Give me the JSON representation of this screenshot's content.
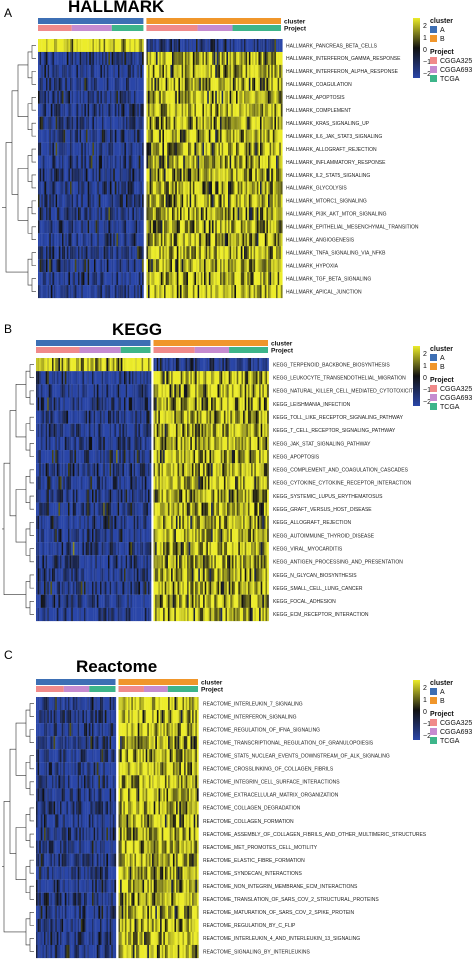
{
  "legend": {
    "cluster_title": "cluster",
    "cluster_items": [
      {
        "label": "A",
        "color": "#3d6fb4"
      },
      {
        "label": "B",
        "color": "#f0962b"
      }
    ],
    "project_title": "Project",
    "project_items": [
      {
        "label": "CGGA325",
        "color": "#f08a8a"
      },
      {
        "label": "CGGA693",
        "color": "#c58bd0"
      },
      {
        "label": "TCGA",
        "color": "#3db58a"
      }
    ],
    "scale_ticks": [
      "2",
      "1",
      "0",
      "−1",
      "−2"
    ],
    "colors": {
      "high": "#ecec2a",
      "mid": "#111111",
      "low": "#2a46a8"
    }
  },
  "bar_labels": {
    "cluster": "cluster",
    "project": "Project"
  },
  "chart_data": [
    {
      "type": "heatmap",
      "panel": "A",
      "title": "HALLMARK",
      "rows": [
        "HALLMARK_PANCREAS_BETA_CELLS",
        "HALLMARK_INTERFERON_GAMMA_RESPONSE",
        "HALLMARK_INTERFERON_ALPHA_RESPONSE",
        "HALLMARK_COAGULATION",
        "HALLMARK_APOPTOSIS",
        "HALLMARK_COMPLEMENT",
        "HALLMARK_KRAS_SIGNALING_UP",
        "HALLMARK_IL6_JAK_STAT3_SIGNALING",
        "HALLMARK_ALLOGRAFT_REJECTION",
        "HALLMARK_INFLAMMATORY_RESPONSE",
        "HALLMARK_IL2_STAT5_SIGNALING",
        "HALLMARK_GLYCOLYSIS",
        "HALLMARK_MTORC1_SIGNALING",
        "HALLMARK_PI3K_AKT_MTOR_SIGNALING",
        "HALLMARK_EPITHELIAL_MESENCHYMAL_TRANSITION",
        "HALLMARK_ANGIOGENESIS",
        "HALLMARK_TNFA_SIGNALING_VIA_NFKB",
        "HALLMARK_HYPOXIA",
        "HALLMARK_TGF_BETA_SIGNALING",
        "HALLMARK_APICAL_JUNCTION"
      ],
      "cluster_split": 0.44,
      "project_a": [
        0.32,
        0.38,
        0.3
      ],
      "project_b": [
        0.38,
        0.26,
        0.36
      ],
      "cluster_a_level": [
        1.4,
        -1.2,
        -1.3,
        -1.3,
        -1.2,
        -1.3,
        -1.2,
        -1.1,
        -1.2,
        -1.2,
        -1.1,
        -1.1,
        -1.0,
        -1.0,
        -1.3,
        -1.2,
        -1.1,
        -1.1,
        -1.4,
        -1.3
      ],
      "cluster_b_level": [
        -1.3,
        1.1,
        1.1,
        1.0,
        1.0,
        1.1,
        1.0,
        1.0,
        1.0,
        1.0,
        0.9,
        0.9,
        0.9,
        0.9,
        1.1,
        1.0,
        1.0,
        0.9,
        1.2,
        1.2
      ]
    },
    {
      "type": "heatmap",
      "panel": "B",
      "title": "KEGG",
      "rows": [
        "KEGG_TERPENOID_BACKBONE_BIOSYNTHESIS",
        "KEGG_LEUKOCYTE_TRANSENDOTHELIAL_MIGRATION",
        "KEGG_NATURAL_KILLER_CELL_MEDIATED_CYTOTOXICITY",
        "KEGG_LEISHMANIA_INFECTION",
        "KEGG_TOLL_LIKE_RECEPTOR_SIGNALING_PATHWAY",
        "KEGG_T_CELL_RECEPTOR_SIGNALING_PATHWAY",
        "KEGG_JAK_STAT_SIGNALING_PATHWAY",
        "KEGG_APOPTOSIS",
        "KEGG_COMPLEMENT_AND_COAGULATION_CASCADES",
        "KEGG_CYTOKINE_CYTOKINE_RECEPTOR_INTERACTION",
        "KEGG_SYSTEMIC_LUPUS_ERYTHEMATOSUS",
        "KEGG_GRAFT_VERSUS_HOST_DISEASE",
        "KEGG_ALLOGRAFT_REJECTION",
        "KEGG_AUTOIMMUNE_THYROID_DISEASE",
        "KEGG_VIRAL_MYOCARDITIS",
        "KEGG_ANTIGEN_PROCESSING_AND_PRESENTATION",
        "KEGG_N_GLYCAN_BIOSYNTHESIS",
        "KEGG_SMALL_CELL_LUNG_CANCER",
        "KEGG_FOCAL_ADHESION",
        "KEGG_ECM_RECEPTOR_INTERACTION"
      ],
      "cluster_split": 0.5,
      "project_a": [
        0.38,
        0.36,
        0.26
      ],
      "project_b": [
        0.36,
        0.3,
        0.34
      ],
      "cluster_a_level": [
        1.3,
        -1.3,
        -1.2,
        -1.2,
        -1.2,
        -1.2,
        -1.2,
        -1.1,
        -1.2,
        -1.2,
        -1.2,
        -1.2,
        -1.2,
        -1.2,
        -1.1,
        -1.2,
        -1.1,
        -1.1,
        -1.2,
        -1.3
      ],
      "cluster_b_level": [
        -1.2,
        1.1,
        1.1,
        1.1,
        1.1,
        1.0,
        1.0,
        1.0,
        1.0,
        1.1,
        1.0,
        1.0,
        1.0,
        1.0,
        1.0,
        1.0,
        0.9,
        1.0,
        1.1,
        1.1
      ]
    },
    {
      "type": "heatmap",
      "panel": "C",
      "title": "Reactome",
      "rows": [
        "REACTOME_INTERLEUKIN_7_SIGNALING",
        "REACTOME_INTERFERON_SIGNALING",
        "REACTOME_REGULATION_OF_IFNA_SIGNALING",
        "REACTOME_TRANSCRIPTIONAL_REGULATION_OF_GRANULOPOIESIS",
        "REACTOME_STAT5_NUCLEAR_EVENTS_DOWNSTREAM_OF_ALK_SIGNALING",
        "REACTOME_CROSSLINKING_OF_COLLAGEN_FIBRILS",
        "REACTOME_INTEGRIN_CELL_SURFACE_INTERACTIONS",
        "REACTOME_EXTRACELLULAR_MATRIX_ORGANIZATION",
        "REACTOME_COLLAGEN_DEGRADATION",
        "REACTOME_COLLAGEN_FORMATION",
        "REACTOME_ASSEMBLY_OF_COLLAGEN_FIBRILS_AND_OTHER_MULTIMERIC_STRUCTURES",
        "REACTOME_MET_PROMOTES_CELL_MOTILITY",
        "REACTOME_ELASTIC_FIBRE_FORMATION",
        "REACTOME_SYNDECAN_INTERACTIONS",
        "REACTOME_NON_INTEGRIN_MEMBRANE_ECM_INTERACTIONS",
        "REACTOME_TRANSLATION_OF_SARS_COV_2_STRUCTURAL_PROTEINS",
        "REACTOME_MATURATION_OF_SARS_COV_2_SPIKE_PROTEIN",
        "REACTOME_REGULATION_BY_C_FLIP",
        "REACTOME_INTERLEUKIN_4_AND_INTERLEUKIN_13_SIGNALING",
        "REACTOME_SIGNALING_BY_INTERLEUKINS"
      ],
      "cluster_split": 0.5,
      "project_a": [
        0.35,
        0.32,
        0.33
      ],
      "project_b": [
        0.32,
        0.3,
        0.38
      ],
      "cluster_a_level": [
        -1.3,
        -1.2,
        -1.2,
        -1.2,
        -1.1,
        -1.2,
        -1.2,
        -1.2,
        -1.1,
        -1.2,
        -1.2,
        -1.1,
        -1.1,
        -1.1,
        -1.2,
        -1.1,
        -1.1,
        -1.1,
        -1.2,
        -1.3
      ],
      "cluster_b_level": [
        1.2,
        1.1,
        1.1,
        1.0,
        1.0,
        1.1,
        1.1,
        1.1,
        1.0,
        1.1,
        1.0,
        1.0,
        1.0,
        1.0,
        1.0,
        1.0,
        1.0,
        1.0,
        1.1,
        1.1
      ]
    }
  ]
}
